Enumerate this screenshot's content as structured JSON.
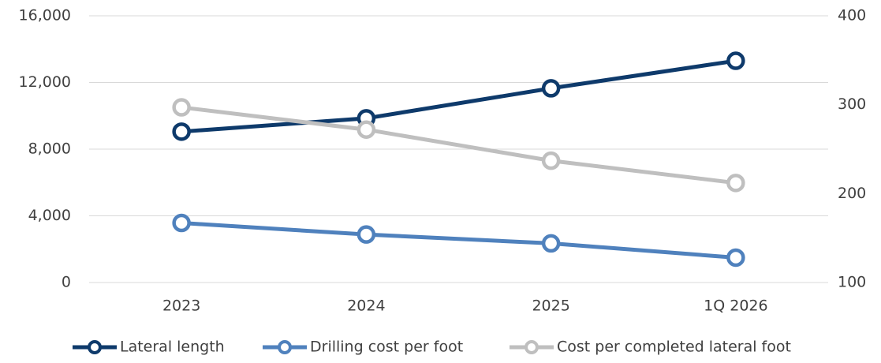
{
  "chart_data": {
    "type": "line",
    "categories": [
      "2023",
      "2024",
      "2025",
      "1Q 2026"
    ],
    "series": [
      {
        "name": "Lateral length",
        "color": "#0e3a6b",
        "values": [
          9050,
          9850,
          11650,
          13300
        ]
      },
      {
        "name": "Drilling cost per foot",
        "color": "#4f81bd",
        "axis": "y2",
        "values": [
          167,
          154,
          144,
          128
        ]
      },
      {
        "name": "Cost per completed lateral foot",
        "color": "#bfbfbf",
        "axis": "y2",
        "values": [
          297,
          272,
          237,
          212
        ]
      }
    ],
    "ylim": [
      0,
      16000
    ],
    "yticks": [
      {
        "value": 0,
        "label": "0"
      },
      {
        "value": 4000,
        "label": "4,000"
      },
      {
        "value": 8000,
        "label": "8,000"
      },
      {
        "value": 12000,
        "label": "12,000"
      },
      {
        "value": 16000,
        "label": "16,000"
      }
    ],
    "y2lim": [
      100,
      400
    ],
    "y2ticks": [
      100,
      200,
      300,
      400
    ],
    "grid": true,
    "legend": "bottom"
  }
}
